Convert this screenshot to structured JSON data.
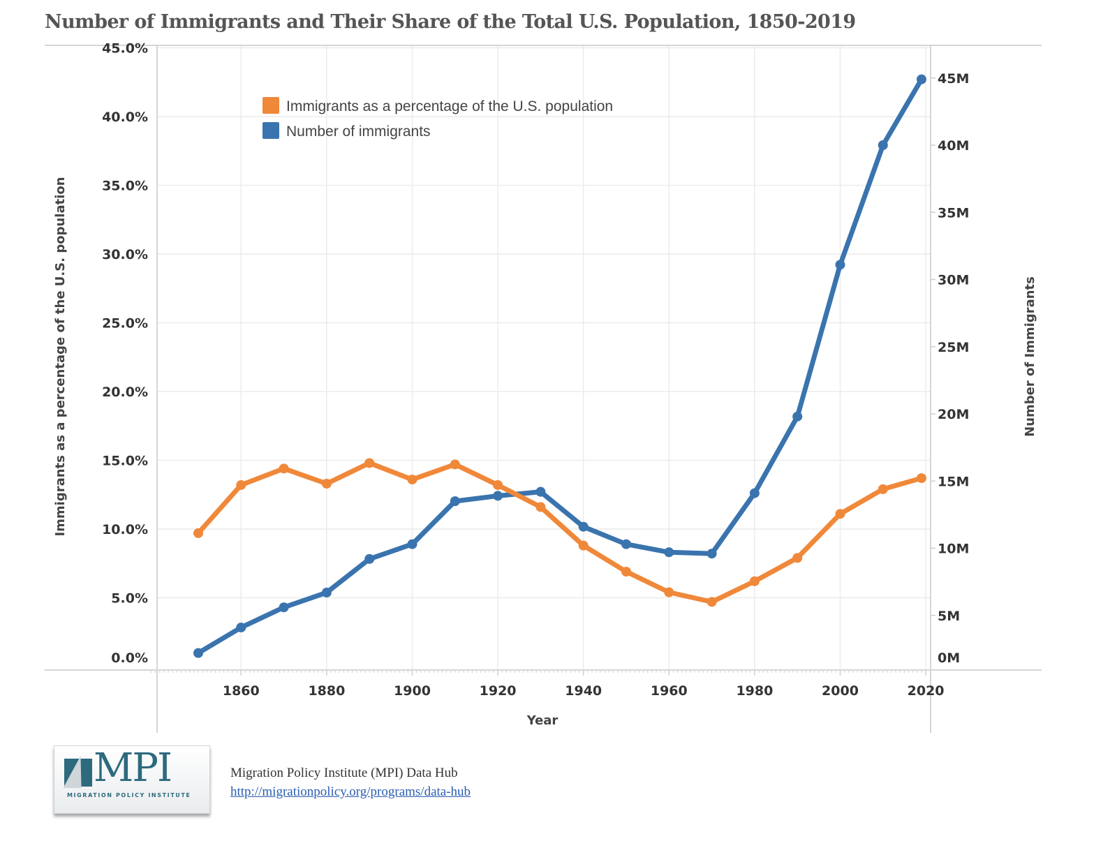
{
  "header": {
    "title": "Number of Immigrants and Their Share of the Total U.S. Population, 1850-2019"
  },
  "colors": {
    "percent_series": "#f0883a",
    "number_series": "#3a74ae",
    "gridline": "#ececec",
    "axis_line": "#d6d6d6"
  },
  "chart_data": {
    "type": "line",
    "title": "Number of Immigrants and Their Share of the Total U.S. Population, 1850-2019",
    "xlabel": "Year",
    "ylabel_left": "Immigrants as a percentage of the U.S. population",
    "ylabel_right": "Number of Immigrants",
    "x": [
      1850,
      1860,
      1870,
      1880,
      1890,
      1900,
      1910,
      1920,
      1930,
      1940,
      1950,
      1960,
      1970,
      1980,
      1990,
      2000,
      2010,
      2019
    ],
    "x_ticks": [
      "1860",
      "1880",
      "1900",
      "1920",
      "1940",
      "1960",
      "1980",
      "2000",
      "2020"
    ],
    "x_tick_values": [
      1860,
      1880,
      1900,
      1920,
      1940,
      1960,
      1980,
      2000,
      2020
    ],
    "xlim": [
      1838,
      2020
    ],
    "y_left_ticks": [
      "0.0%",
      "5.0%",
      "10.0%",
      "15.0%",
      "20.0%",
      "25.0%",
      "30.0%",
      "35.0%",
      "40.0%",
      "45.0%"
    ],
    "y_left_tick_values": [
      0,
      5,
      10,
      15,
      20,
      25,
      30,
      35,
      40,
      45
    ],
    "ylim_left": [
      0,
      45
    ],
    "y_right_ticks": [
      "0M",
      "5M",
      "10M",
      "15M",
      "20M",
      "25M",
      "30M",
      "35M",
      "40M",
      "45M"
    ],
    "y_right_tick_values": [
      0,
      5,
      10,
      15,
      20,
      25,
      30,
      35,
      40,
      45
    ],
    "ylim_right": [
      0,
      45
    ],
    "grid": true,
    "legend_position": "top-left",
    "series": [
      {
        "name": "Immigrants as a percentage of the U.S. population",
        "axis": "left",
        "unit": "%",
        "values": [
          9.7,
          13.2,
          14.4,
          13.3,
          14.8,
          13.6,
          14.7,
          13.2,
          11.6,
          8.8,
          6.9,
          5.4,
          4.7,
          6.2,
          7.9,
          11.1,
          12.9,
          13.7
        ]
      },
      {
        "name": "Number of immigrants",
        "axis": "right",
        "unit": "millions",
        "values": [
          2.2,
          4.1,
          5.6,
          6.7,
          9.2,
          10.3,
          13.5,
          13.9,
          14.2,
          11.6,
          10.3,
          9.7,
          9.6,
          14.1,
          19.8,
          31.1,
          40.0,
          44.9
        ]
      }
    ]
  },
  "footer": {
    "logo_text": "MPI",
    "logo_subtext": "MIGRATION POLICY INSTITUTE",
    "source": "Migration Policy Institute (MPI) Data Hub",
    "link": "http://migrationpolicy.org/programs/data-hub"
  }
}
